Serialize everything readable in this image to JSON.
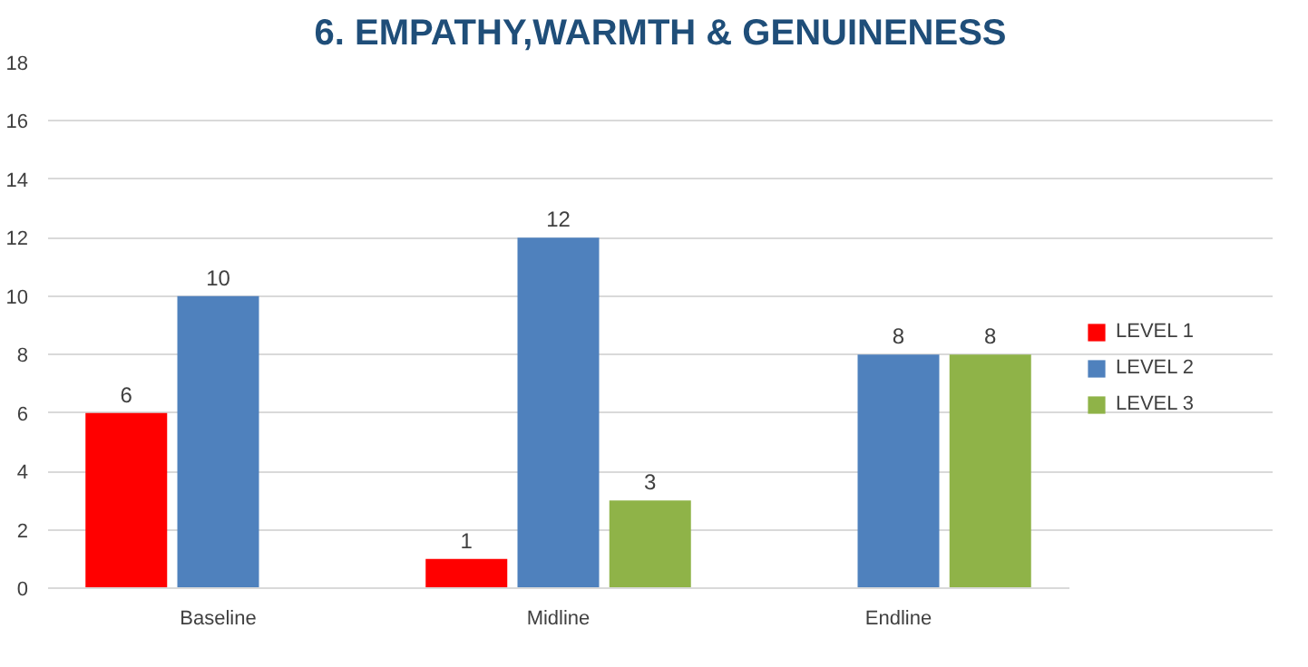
{
  "chart_data": {
    "type": "bar",
    "title": "6. EMPATHY,WARMTH & GENUINENESS",
    "categories": [
      "Baseline",
      "Midline",
      "Endline"
    ],
    "series": [
      {
        "name": "LEVEL 1",
        "color": "#ff0000",
        "values": [
          6,
          1,
          null
        ]
      },
      {
        "name": "LEVEL 2",
        "color": "#4f81bd",
        "values": [
          10,
          12,
          8
        ]
      },
      {
        "name": "LEVEL 3",
        "color": "#8fb348",
        "values": [
          null,
          3,
          8
        ]
      }
    ],
    "ylim": [
      0,
      18
    ],
    "yticks": [
      0,
      2,
      4,
      6,
      8,
      10,
      12,
      14,
      16,
      18
    ],
    "grid": "y",
    "legend": "right",
    "data_labels": true
  }
}
